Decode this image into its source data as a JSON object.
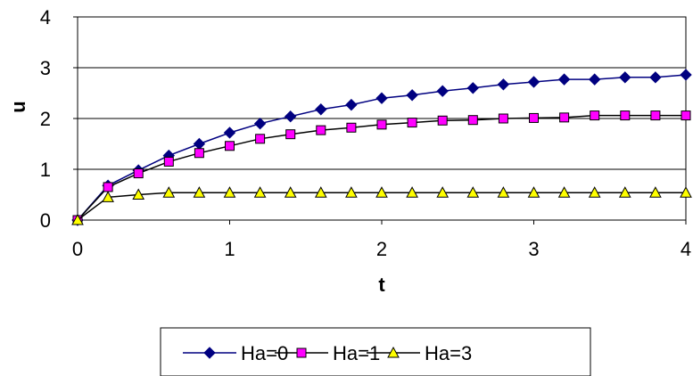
{
  "chart_data": {
    "type": "line",
    "title": "",
    "xlabel": "t",
    "ylabel": "u",
    "xlim": [
      0,
      4
    ],
    "ylim": [
      0,
      4
    ],
    "x_ticks": [
      "0",
      "1",
      "2",
      "3",
      "4"
    ],
    "y_ticks": [
      "0",
      "1",
      "2",
      "3",
      "4"
    ],
    "grid": "horizontal",
    "legend_position": "bottom",
    "x": [
      0,
      0.2,
      0.4,
      0.6,
      0.8,
      1.0,
      1.2,
      1.4,
      1.6,
      1.8,
      2.0,
      2.2,
      2.4,
      2.6,
      2.8,
      3.0,
      3.2,
      3.4,
      3.6,
      3.8,
      4.0
    ],
    "series": [
      {
        "name": "Ha=0",
        "marker": "diamond",
        "line_color": "#000080",
        "marker_color": "#000080",
        "values": [
          0,
          0.68,
          0.98,
          1.27,
          1.5,
          1.72,
          1.9,
          2.04,
          2.18,
          2.27,
          2.4,
          2.46,
          2.54,
          2.6,
          2.67,
          2.72,
          2.77,
          2.77,
          2.81,
          2.81,
          2.86
        ]
      },
      {
        "name": "Ha=1",
        "marker": "square",
        "line_color": "#000000",
        "marker_color": "#ff00ff",
        "values": [
          0,
          0.65,
          0.92,
          1.15,
          1.32,
          1.46,
          1.6,
          1.69,
          1.77,
          1.82,
          1.88,
          1.92,
          1.96,
          1.97,
          2.0,
          2.01,
          2.02,
          2.06,
          2.06,
          2.06,
          2.06
        ]
      },
      {
        "name": "Ha=3",
        "marker": "triangle",
        "line_color": "#000000",
        "marker_color": "#ffff00",
        "values": [
          0,
          0.45,
          0.5,
          0.54,
          0.54,
          0.54,
          0.54,
          0.54,
          0.54,
          0.54,
          0.54,
          0.54,
          0.54,
          0.54,
          0.54,
          0.54,
          0.54,
          0.54,
          0.54,
          0.54,
          0.54
        ]
      }
    ]
  }
}
